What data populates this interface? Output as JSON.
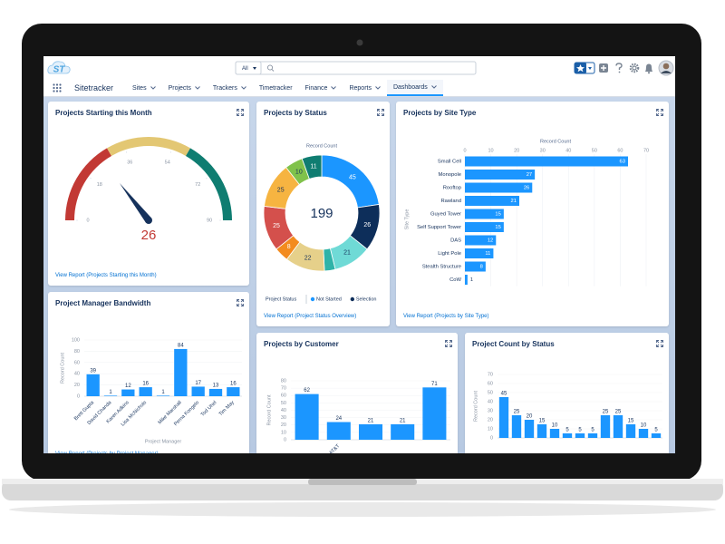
{
  "app": {
    "logo": "ST",
    "search_scope": "All",
    "name": "Sitetracker",
    "nav": [
      "Sites",
      "Projects",
      "Trackers",
      "Timetracker",
      "Finance",
      "Reports",
      "Dashboards"
    ]
  },
  "panels": [
    {
      "title": "Projects Starting this Month",
      "chart": {
        "type": "gauge",
        "value": 26,
        "lim": [
          0,
          90
        ],
        "ticks": [
          0,
          18,
          36,
          54,
          72,
          90
        ],
        "bands": [
          {
            "to": 30,
            "color": "#c23934"
          },
          {
            "to": 60,
            "color": "#e3c773"
          },
          {
            "to": 90,
            "color": "#0f7d71"
          }
        ],
        "value_color": "#c23934",
        "needle_color": "#16325c"
      },
      "link": "View Report (Projects Starting this Month)"
    },
    {
      "title": "Projects by Status",
      "chart": {
        "type": "donut",
        "label": "Record Count",
        "total": 199,
        "values": [
          45,
          26,
          21,
          6,
          22,
          8,
          25,
          25,
          10,
          11
        ],
        "colors": [
          "#1b96ff",
          "#0d2e5a",
          "#6fdad6",
          "#2fb3a8",
          "#e6d08a",
          "#f38b1e",
          "#d4504c",
          "#f6b441",
          "#80c24b",
          "#0f7d71"
        ],
        "legend_title": "Project Status",
        "legend": [
          {
            "name": "Not Started",
            "color": "#1b96ff"
          },
          {
            "name": "Selection",
            "color": "#0d2e5a"
          }
        ]
      },
      "link": "View Report (Project Status Overview)"
    },
    {
      "title": "Projects by Site Type",
      "chart": {
        "type": "hbar",
        "xlabel": "Record Count",
        "ylabel": "Site Type",
        "categories": [
          "Small Cell",
          "Monopole",
          "Rooftop",
          "Rawland",
          "Guyed Tower",
          "Self Support Tower",
          "DAS",
          "Light Pole",
          "Stealth Structure",
          "CoW"
        ],
        "values": [
          63,
          27,
          26,
          21,
          15,
          15,
          12,
          11,
          8,
          1
        ],
        "xlim": [
          0,
          70
        ],
        "xticks": [
          0,
          10,
          20,
          30,
          40,
          50,
          60,
          70
        ],
        "color": "#1b96ff"
      },
      "link": "View Report (Projects by Site Type)"
    },
    {
      "title": "Project Manager Bandwidth",
      "chart": {
        "type": "bar",
        "ylabel": "Record Count",
        "xlabel": "Project Manager",
        "categories": [
          "Brett Gupta",
          "David Chanda",
          "Karen Adkins",
          "Lisa McNichols",
          null,
          "Mike Marshall",
          "Perna Kongelo",
          "Tod Uhel",
          "Tim May"
        ],
        "values": [
          39,
          1,
          12,
          16,
          1,
          84,
          17,
          13,
          16
        ],
        "ylim": [
          0,
          100
        ],
        "yticks": [
          0,
          20,
          40,
          60,
          80,
          100
        ],
        "color": "#1b96ff"
      },
      "link": "View Report (Projects by Project Manager)"
    },
    {
      "title": "Projects by Customer",
      "chart": {
        "type": "bar",
        "ylabel": "Record Count",
        "categories": [
          null,
          "AT&T",
          null,
          null,
          null
        ],
        "values": [
          62,
          24,
          21,
          21,
          71
        ],
        "ylim": [
          0,
          80
        ],
        "yticks": [
          0,
          10,
          20,
          30,
          40,
          50,
          60,
          70,
          80
        ],
        "color": "#1b96ff"
      }
    },
    {
      "title": "Project Count by Status",
      "chart": {
        "type": "bar",
        "ylabel": "Record Count",
        "categories": [
          null,
          null,
          null,
          null,
          null,
          null,
          null,
          null,
          null,
          null,
          null,
          null,
          null
        ],
        "values": [
          45,
          25,
          20,
          15,
          10,
          5,
          5,
          5,
          25,
          25,
          15,
          10,
          5
        ],
        "ylim": [
          0,
          70
        ],
        "yticks": [
          0,
          10,
          20,
          30,
          40,
          50,
          60,
          70
        ],
        "color": "#1b96ff"
      }
    }
  ]
}
